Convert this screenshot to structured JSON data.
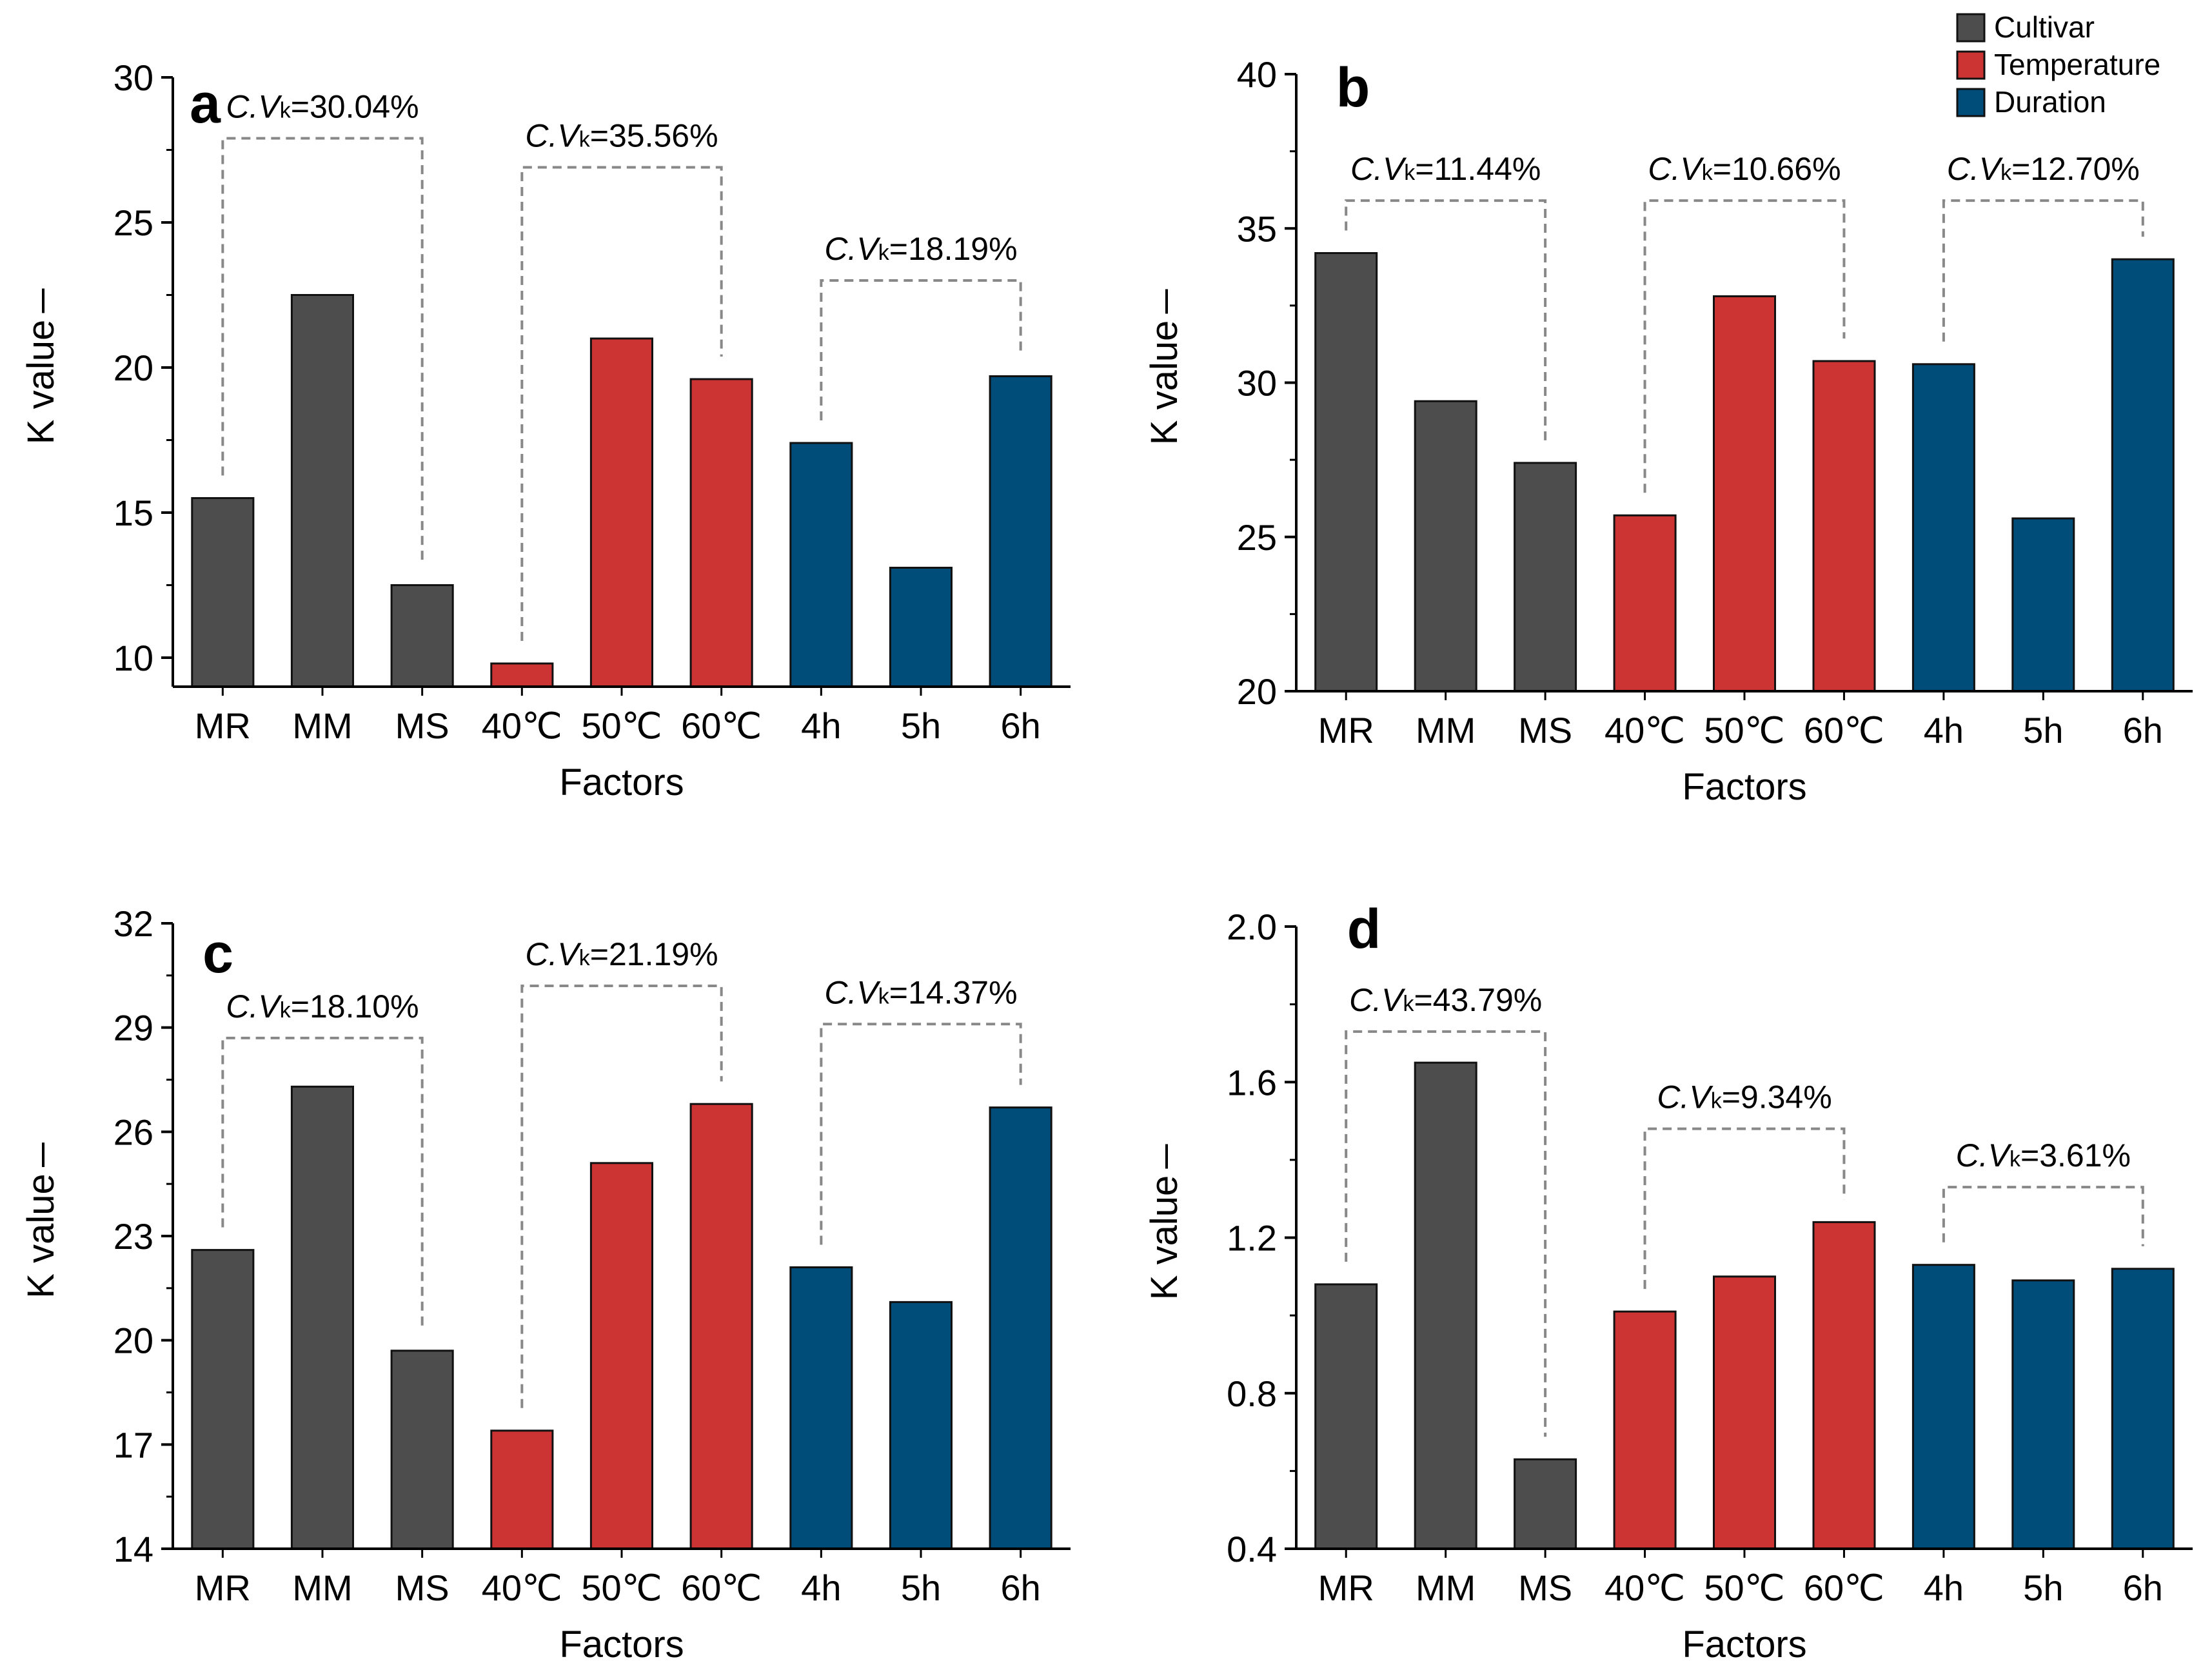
{
  "legend": [
    {
      "label": "Cultivar",
      "color": "#4d4d4d"
    },
    {
      "label": "Temperature",
      "color": "#cc3333"
    },
    {
      "label": "Duration",
      "color": "#004d7a"
    }
  ],
  "chart_data": [
    {
      "type": "bar",
      "panel": "a",
      "categories": [
        "MR",
        "MM",
        "MS",
        "40℃",
        "50℃",
        "60℃",
        "4h",
        "5h",
        "6h"
      ],
      "groups": [
        "Cultivar",
        "Cultivar",
        "Cultivar",
        "Temperature",
        "Temperature",
        "Temperature",
        "Duration",
        "Duration",
        "Duration"
      ],
      "values": [
        15.5,
        22.5,
        12.5,
        9.8,
        21.0,
        19.6,
        17.4,
        13.1,
        19.7
      ],
      "ylim": [
        9,
        30
      ],
      "yticks": [
        "10",
        "15",
        "20",
        "25",
        "30"
      ],
      "xlabel": "Factors",
      "ylabel": "K value",
      "annotations": [
        {
          "text": "C.V",
          "sub": "k",
          "value": "=30.04%",
          "from": 0,
          "to": 2,
          "level": 27.9,
          "from_top": 15.5,
          "to_top": 12.5
        },
        {
          "text": "C.V",
          "sub": "k",
          "value": "=35.56%",
          "from": 3,
          "to": 5,
          "level": 26.9,
          "from_top": 9.8,
          "to_top": 19.6
        },
        {
          "text": "C.V",
          "sub": "k",
          "value": "=18.19%",
          "from": 6,
          "to": 8,
          "level": 23.0,
          "from_top": 17.4,
          "to_top": 19.7
        }
      ]
    },
    {
      "type": "bar",
      "panel": "b",
      "categories": [
        "MR",
        "MM",
        "MS",
        "40℃",
        "50℃",
        "60℃",
        "4h",
        "5h",
        "6h"
      ],
      "groups": [
        "Cultivar",
        "Cultivar",
        "Cultivar",
        "Temperature",
        "Temperature",
        "Temperature",
        "Duration",
        "Duration",
        "Duration"
      ],
      "values": [
        34.2,
        29.4,
        27.4,
        25.7,
        32.8,
        30.7,
        30.6,
        25.6,
        34.0
      ],
      "ylim": [
        20,
        40
      ],
      "yticks": [
        "20",
        "25",
        "30",
        "35",
        "40"
      ],
      "xlabel": "Factors",
      "ylabel": "K value",
      "annotations": [
        {
          "text": "C.V",
          "sub": "k",
          "value": "=11.44%",
          "from": 0,
          "to": 2,
          "level": 35.9,
          "from_top": 34.2,
          "to_top": 27.4
        },
        {
          "text": "C.V",
          "sub": "k",
          "value": "=10.66%",
          "from": 3,
          "to": 5,
          "level": 35.9,
          "from_top": 25.7,
          "to_top": 30.7
        },
        {
          "text": "C.V",
          "sub": "k",
          "value": "=12.70%",
          "from": 6,
          "to": 8,
          "level": 35.9,
          "from_top": 30.6,
          "to_top": 34.0
        }
      ]
    },
    {
      "type": "bar",
      "panel": "c",
      "categories": [
        "MR",
        "MM",
        "MS",
        "40℃",
        "50℃",
        "60℃",
        "4h",
        "5h",
        "6h"
      ],
      "groups": [
        "Cultivar",
        "Cultivar",
        "Cultivar",
        "Temperature",
        "Temperature",
        "Temperature",
        "Duration",
        "Duration",
        "Duration"
      ],
      "values": [
        22.6,
        27.3,
        19.7,
        17.4,
        25.1,
        26.8,
        22.1,
        21.1,
        26.7
      ],
      "ylim": [
        14,
        32
      ],
      "yticks": [
        "14",
        "17",
        "20",
        "23",
        "26",
        "29",
        "32"
      ],
      "xlabel": "Factors",
      "ylabel": "K value",
      "annotations": [
        {
          "text": "C.V",
          "sub": "k",
          "value": "=18.10%",
          "from": 0,
          "to": 2,
          "level": 28.7,
          "from_top": 22.6,
          "to_top": 19.7
        },
        {
          "text": "C.V",
          "sub": "k",
          "value": "=21.19%",
          "from": 3,
          "to": 5,
          "level": 30.2,
          "from_top": 17.4,
          "to_top": 26.8
        },
        {
          "text": "C.V",
          "sub": "k",
          "value": "=14.37%",
          "from": 6,
          "to": 8,
          "level": 29.1,
          "from_top": 22.1,
          "to_top": 26.7
        }
      ]
    },
    {
      "type": "bar",
      "panel": "d",
      "categories": [
        "MR",
        "MM",
        "MS",
        "40℃",
        "50℃",
        "60℃",
        "4h",
        "5h",
        "6h"
      ],
      "groups": [
        "Cultivar",
        "Cultivar",
        "Cultivar",
        "Temperature",
        "Temperature",
        "Temperature",
        "Duration",
        "Duration",
        "Duration"
      ],
      "values": [
        1.08,
        1.65,
        0.63,
        1.01,
        1.1,
        1.24,
        1.13,
        1.09,
        1.12
      ],
      "ylim": [
        0.4,
        2.0
      ],
      "yticks": [
        "0.4",
        "0.8",
        "1.2",
        "1.6",
        "2.0"
      ],
      "xlabel": "Factors",
      "ylabel": "K value",
      "annotations": [
        {
          "text": "C.V",
          "sub": "k",
          "value": "=43.79%",
          "from": 0,
          "to": 2,
          "level": 1.73,
          "from_top": 1.08,
          "to_top": 0.63
        },
        {
          "text": "C.V",
          "sub": "k",
          "value": "=9.34%",
          "from": 3,
          "to": 5,
          "level": 1.48,
          "from_top": 1.01,
          "to_top": 1.24
        },
        {
          "text": "C.V",
          "sub": "k",
          "value": "=3.61%",
          "from": 6,
          "to": 8,
          "level": 1.33,
          "from_top": 1.13,
          "to_top": 1.12
        }
      ]
    }
  ]
}
